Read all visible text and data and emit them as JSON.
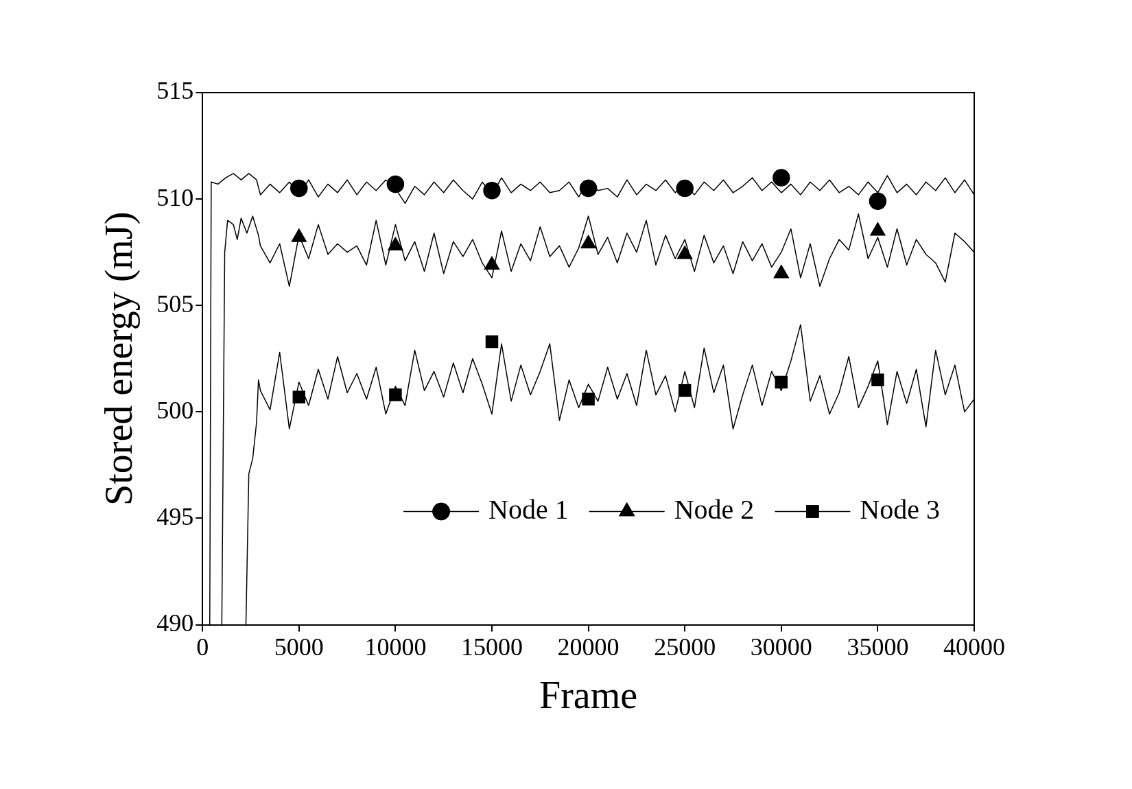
{
  "chart_data": {
    "type": "line",
    "xlabel": "Frame",
    "ylabel": "Stored energy (mJ)",
    "xlim": [
      0,
      40000
    ],
    "xticks": [
      0,
      5000,
      10000,
      15000,
      20000,
      25000,
      30000,
      35000,
      40000
    ],
    "ylim": [
      490,
      515
    ],
    "yticks": [
      490,
      495,
      500,
      505,
      510,
      515
    ],
    "grid": false,
    "legend": "bottom right",
    "series": [
      {
        "color": "#000000",
        "marker": "none",
        "x": [
          375,
          450,
          800,
          1200,
          1600,
          2000,
          2400,
          2800,
          3000,
          3500,
          4000,
          4500,
          5000,
          5500,
          6000,
          6500,
          7000,
          7500,
          8000,
          8500,
          9000,
          9500,
          10000,
          10500,
          11000,
          11500,
          12000,
          12500,
          13000,
          13500,
          14000,
          14500,
          15000,
          15500,
          16000,
          16500,
          17000,
          17500,
          18000,
          18500,
          19000,
          19500,
          20000,
          20500,
          21000,
          21500,
          22000,
          22500,
          23000,
          23500,
          24000,
          24500,
          25000,
          25500,
          26000,
          26500,
          27000,
          27500,
          28000,
          28500,
          29000,
          29500,
          30000,
          30500,
          31000,
          31500,
          32000,
          32500,
          33000,
          33500,
          34000,
          34500,
          35000,
          35500,
          36000,
          36500,
          37000,
          37500,
          38000,
          38500,
          39000,
          39500,
          40000
        ],
        "values": [
          490,
          510.8,
          510.7,
          511.0,
          511.2,
          510.9,
          511.2,
          510.9,
          510.2,
          510.7,
          510.3,
          510.8,
          510.2,
          510.9,
          510.1,
          510.7,
          510.3,
          510.9,
          510.2,
          510.8,
          510.4,
          510.9,
          510.5,
          509.8,
          510.6,
          510.2,
          510.8,
          510.3,
          510.9,
          510.4,
          510.0,
          510.8,
          510.2,
          511.0,
          510.3,
          510.7,
          510.4,
          510.8,
          510.3,
          510.4,
          510.8,
          510.1,
          510.9,
          510.4,
          510.5,
          510.1,
          510.9,
          510.2,
          510.7,
          510.4,
          510.9,
          510.3,
          510.7,
          510.2,
          510.8,
          510.4,
          510.9,
          510.3,
          510.6,
          511.0,
          510.4,
          510.8,
          510.3,
          510.7,
          510.2,
          510.8,
          510.4,
          510.9,
          510.3,
          510.6,
          510.2,
          510.8,
          510.3,
          511.1,
          510.3,
          510.7,
          510.2,
          510.8,
          510.4,
          511.0,
          510.3,
          510.9,
          510.2
        ]
      },
      {
        "color": "#000000",
        "marker": "none",
        "x": [
          1000,
          1150,
          1300,
          1600,
          1800,
          2000,
          2300,
          2600,
          2900,
          3000,
          3500,
          4000,
          4500,
          5000,
          5500,
          6000,
          6500,
          7000,
          7500,
          8000,
          8500,
          9000,
          9500,
          10000,
          10500,
          11000,
          11500,
          12000,
          12500,
          13000,
          13500,
          14000,
          14500,
          15000,
          15500,
          16000,
          16500,
          17000,
          17500,
          18000,
          18500,
          19000,
          19500,
          20000,
          20500,
          21000,
          21500,
          22000,
          22500,
          23000,
          23500,
          24000,
          24500,
          25000,
          25500,
          26000,
          26500,
          27000,
          27500,
          28000,
          28500,
          29000,
          29500,
          30000,
          30500,
          31000,
          31500,
          32000,
          32500,
          33000,
          33500,
          34000,
          34500,
          35000,
          35500,
          36000,
          36500,
          37000,
          37500,
          38000,
          38500,
          39000,
          39500,
          40000
        ],
        "values": [
          490,
          507.5,
          509.0,
          508.8,
          508.1,
          509.1,
          508.4,
          509.2,
          508.3,
          507.8,
          507.0,
          507.9,
          505.9,
          508.3,
          507.2,
          508.8,
          507.4,
          507.9,
          507.5,
          507.8,
          506.9,
          509.0,
          506.9,
          508.8,
          507.1,
          508.0,
          506.6,
          508.4,
          506.5,
          508.0,
          507.3,
          508.1,
          507.0,
          506.3,
          508.5,
          506.6,
          507.9,
          507.1,
          508.7,
          507.3,
          507.8,
          506.8,
          507.7,
          509.2,
          507.4,
          508.2,
          507.0,
          508.4,
          507.5,
          509.0,
          506.9,
          508.3,
          507.2,
          508.1,
          506.6,
          508.3,
          507.0,
          507.8,
          506.5,
          508.0,
          507.1,
          507.9,
          506.8,
          507.5,
          508.6,
          506.3,
          507.9,
          505.9,
          507.2,
          508.1,
          507.6,
          509.3,
          507.2,
          508.2,
          506.8,
          508.6,
          506.9,
          508.1,
          507.4,
          507.0,
          506.1,
          508.4,
          508.0,
          507.5
        ]
      },
      {
        "color": "#000000",
        "marker": "none",
        "x": [
          2250,
          2400,
          2600,
          2800,
          2900,
          3000,
          3500,
          4000,
          4500,
          5000,
          5500,
          6000,
          6500,
          7000,
          7500,
          8000,
          8500,
          9000,
          9500,
          10000,
          10500,
          11000,
          11500,
          12000,
          12500,
          13000,
          13500,
          14000,
          14500,
          15000,
          15500,
          16000,
          16500,
          17000,
          17500,
          18000,
          18500,
          19000,
          19500,
          20000,
          20500,
          21000,
          21500,
          22000,
          22500,
          23000,
          23500,
          24000,
          24500,
          25000,
          25500,
          26000,
          26500,
          27000,
          27500,
          28000,
          28500,
          29000,
          29500,
          30000,
          30500,
          31000,
          31500,
          32000,
          32500,
          33000,
          33500,
          34000,
          34500,
          35000,
          35500,
          36000,
          36500,
          37000,
          37500,
          38000,
          38500,
          39000,
          39500,
          40000
        ],
        "values": [
          490,
          497.1,
          497.8,
          499.5,
          501.5,
          501.0,
          500.1,
          502.8,
          499.2,
          501.4,
          500.3,
          502.0,
          500.6,
          502.6,
          500.9,
          501.8,
          500.6,
          502.1,
          499.9,
          501.2,
          500.3,
          502.9,
          501.0,
          501.9,
          500.7,
          502.3,
          500.9,
          502.5,
          501.3,
          499.9,
          503.2,
          500.5,
          502.2,
          500.8,
          501.9,
          503.2,
          499.6,
          501.5,
          500.2,
          501.3,
          500.5,
          502.1,
          500.6,
          501.8,
          500.3,
          502.9,
          500.8,
          501.7,
          500.0,
          501.9,
          500.2,
          503.0,
          500.9,
          502.2,
          499.2,
          500.8,
          502.2,
          500.3,
          501.9,
          501.0,
          502.4,
          504.1,
          500.5,
          501.7,
          499.9,
          500.9,
          502.6,
          500.2,
          501.2,
          502.4,
          499.4,
          501.9,
          500.4,
          502.0,
          499.3,
          502.9,
          500.8,
          502.2,
          500.0,
          500.6
        ]
      },
      {
        "type": "scatter",
        "name": "Node 1",
        "color": "#000000",
        "marker": "circle",
        "x": [
          5000,
          10000,
          15000,
          20000,
          25000,
          30000,
          35000
        ],
        "values": [
          510.5,
          510.7,
          510.4,
          510.5,
          510.5,
          511.0,
          509.9
        ]
      },
      {
        "type": "scatter",
        "name": "Node 2",
        "color": "#000000",
        "marker": "triangle",
        "x": [
          5000,
          10000,
          15000,
          20000,
          25000,
          30000,
          35000
        ],
        "values": [
          508.2,
          507.8,
          506.9,
          507.9,
          507.4,
          506.5,
          508.5
        ]
      },
      {
        "type": "scatter",
        "name": "Node 3",
        "color": "#000000",
        "marker": "square",
        "x": [
          5000,
          10000,
          15000,
          20000,
          25000,
          30000,
          35000
        ],
        "values": [
          500.7,
          500.8,
          503.3,
          500.6,
          501.0,
          501.4,
          501.5
        ]
      }
    ]
  }
}
